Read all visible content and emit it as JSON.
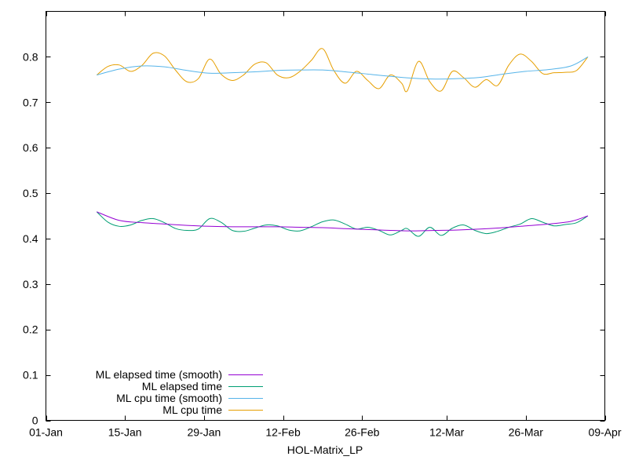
{
  "chart_data": {
    "type": "line",
    "title": "",
    "xlabel": "HOL-Matrix_LP",
    "ylabel": "",
    "x_tick_labels": [
      "01-Jan",
      "15-Jan",
      "29-Jan",
      "12-Feb",
      "26-Feb",
      "12-Mar",
      "26-Mar",
      "09-Apr"
    ],
    "x_ticks": [
      "2024-01-01",
      "2024-01-15",
      "2024-01-29",
      "2024-02-12",
      "2024-02-26",
      "2024-03-12",
      "2024-03-26",
      "2024-04-09"
    ],
    "xlim": [
      "2024-01-01",
      "2024-04-09"
    ],
    "ylim": [
      0,
      0.9
    ],
    "y_ticks": [
      "0",
      "0.1",
      "0.2",
      "0.3",
      "0.4",
      "0.5",
      "0.6",
      "0.7",
      "0.8"
    ],
    "grid": false,
    "legend_position": "bottom-left",
    "series": [
      {
        "name": "ML elapsed time (smooth)",
        "color": "#9400d3",
        "x": [
          "2024-01-10",
          "2024-01-14",
          "2024-01-18",
          "2024-01-22",
          "2024-01-26",
          "2024-01-30",
          "2024-02-03",
          "2024-02-07",
          "2024-02-11",
          "2024-02-15",
          "2024-02-19",
          "2024-02-23",
          "2024-02-27",
          "2024-03-02",
          "2024-03-06",
          "2024-03-10",
          "2024-03-14",
          "2024-03-18",
          "2024-03-22",
          "2024-03-26",
          "2024-03-30",
          "2024-04-03",
          "2024-04-06"
        ],
        "values": [
          0.459,
          0.44,
          0.435,
          0.432,
          0.429,
          0.427,
          0.426,
          0.426,
          0.426,
          0.425,
          0.424,
          0.422,
          0.42,
          0.418,
          0.417,
          0.418,
          0.419,
          0.421,
          0.424,
          0.428,
          0.432,
          0.438,
          0.45
        ]
      },
      {
        "name": "ML elapsed time",
        "color": "#009e73",
        "x": [
          "2024-01-10",
          "2024-01-12",
          "2024-01-14",
          "2024-01-16",
          "2024-01-18",
          "2024-01-20",
          "2024-01-22",
          "2024-01-24",
          "2024-01-26",
          "2024-01-28",
          "2024-01-30",
          "2024-02-01",
          "2024-02-03",
          "2024-02-05",
          "2024-02-07",
          "2024-02-09",
          "2024-02-11",
          "2024-02-13",
          "2024-02-15",
          "2024-02-17",
          "2024-02-19",
          "2024-02-21",
          "2024-02-23",
          "2024-02-25",
          "2024-02-27",
          "2024-02-29",
          "2024-03-02",
          "2024-03-04",
          "2024-03-05",
          "2024-03-07",
          "2024-03-09",
          "2024-03-11",
          "2024-03-13",
          "2024-03-15",
          "2024-03-17",
          "2024-03-19",
          "2024-03-21",
          "2024-03-23",
          "2024-03-25",
          "2024-03-27",
          "2024-03-29",
          "2024-03-31",
          "2024-04-02",
          "2024-04-04",
          "2024-04-06"
        ],
        "values": [
          0.459,
          0.436,
          0.427,
          0.43,
          0.44,
          0.444,
          0.435,
          0.422,
          0.418,
          0.421,
          0.444,
          0.436,
          0.418,
          0.416,
          0.423,
          0.43,
          0.428,
          0.419,
          0.417,
          0.426,
          0.437,
          0.441,
          0.432,
          0.421,
          0.425,
          0.418,
          0.408,
          0.418,
          0.422,
          0.405,
          0.425,
          0.407,
          0.423,
          0.43,
          0.418,
          0.411,
          0.416,
          0.425,
          0.432,
          0.444,
          0.436,
          0.428,
          0.431,
          0.435,
          0.45
        ]
      },
      {
        "name": "ML cpu time (smooth)",
        "color": "#56b4e9",
        "x": [
          "2024-01-10",
          "2024-01-14",
          "2024-01-18",
          "2024-01-22",
          "2024-01-26",
          "2024-01-30",
          "2024-02-03",
          "2024-02-07",
          "2024-02-11",
          "2024-02-15",
          "2024-02-19",
          "2024-02-23",
          "2024-02-27",
          "2024-03-02",
          "2024-03-06",
          "2024-03-10",
          "2024-03-14",
          "2024-03-18",
          "2024-03-22",
          "2024-03-26",
          "2024-03-30",
          "2024-04-03",
          "2024-04-06"
        ],
        "values": [
          0.76,
          0.773,
          0.78,
          0.778,
          0.77,
          0.764,
          0.765,
          0.767,
          0.77,
          0.771,
          0.771,
          0.767,
          0.762,
          0.757,
          0.753,
          0.751,
          0.752,
          0.755,
          0.762,
          0.768,
          0.772,
          0.78,
          0.8
        ]
      },
      {
        "name": "ML cpu time",
        "color": "#e69f00",
        "x": [
          "2024-01-10",
          "2024-01-12",
          "2024-01-14",
          "2024-01-16",
          "2024-01-18",
          "2024-01-20",
          "2024-01-22",
          "2024-01-24",
          "2024-01-26",
          "2024-01-28",
          "2024-01-30",
          "2024-02-01",
          "2024-02-03",
          "2024-02-05",
          "2024-02-07",
          "2024-02-09",
          "2024-02-11",
          "2024-02-13",
          "2024-02-15",
          "2024-02-17",
          "2024-02-19",
          "2024-02-21",
          "2024-02-23",
          "2024-02-25",
          "2024-02-27",
          "2024-02-29",
          "2024-03-02",
          "2024-03-04",
          "2024-03-05",
          "2024-03-07",
          "2024-03-09",
          "2024-03-11",
          "2024-03-13",
          "2024-03-15",
          "2024-03-17",
          "2024-03-19",
          "2024-03-21",
          "2024-03-23",
          "2024-03-25",
          "2024-03-27",
          "2024-03-29",
          "2024-03-31",
          "2024-04-02",
          "2024-04-04",
          "2024-04-06"
        ],
        "values": [
          0.76,
          0.779,
          0.782,
          0.768,
          0.781,
          0.808,
          0.802,
          0.77,
          0.745,
          0.752,
          0.795,
          0.762,
          0.748,
          0.76,
          0.784,
          0.787,
          0.76,
          0.754,
          0.768,
          0.792,
          0.818,
          0.77,
          0.742,
          0.768,
          0.748,
          0.73,
          0.76,
          0.742,
          0.725,
          0.79,
          0.745,
          0.725,
          0.768,
          0.754,
          0.733,
          0.75,
          0.737,
          0.782,
          0.806,
          0.79,
          0.763,
          0.765,
          0.766,
          0.77,
          0.8
        ]
      }
    ]
  }
}
